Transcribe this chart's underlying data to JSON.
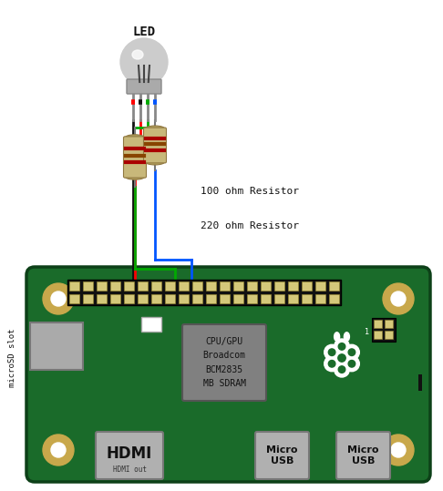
{
  "bg_color": "#ffffff",
  "board_color": "#1a6b2a",
  "board_outline": "#145220",
  "corner_mount_color": "#c8a84b",
  "gpio_pin_color": "#d4c87a",
  "cpu_text": "CPU/GPU\nBroadcom\nBCM2835\nMB SDRAM",
  "cpu_color": "#808080",
  "cpu_text_color": "#111111",
  "led_label": "LED",
  "resistor1_label": "100 ohm Resistor",
  "resistor2_label": "220 ohm Resistor",
  "microsd_label": "microSD slot",
  "hdmi_out_label": "HDMI out",
  "hdmi_label": "HDMI",
  "micro_usb_label": "Micro\nUSB",
  "rpi_logo_color": "#ffffff",
  "wire_black": "#111111",
  "wire_red": "#ff0000",
  "wire_green": "#00aa00",
  "wire_blue": "#0055ff",
  "resistor_body": "#c8b87a",
  "resistor_stripe1": "#aa0000",
  "resistor_stripe2": "#884400",
  "resistor_stripe3": "#aa0000"
}
